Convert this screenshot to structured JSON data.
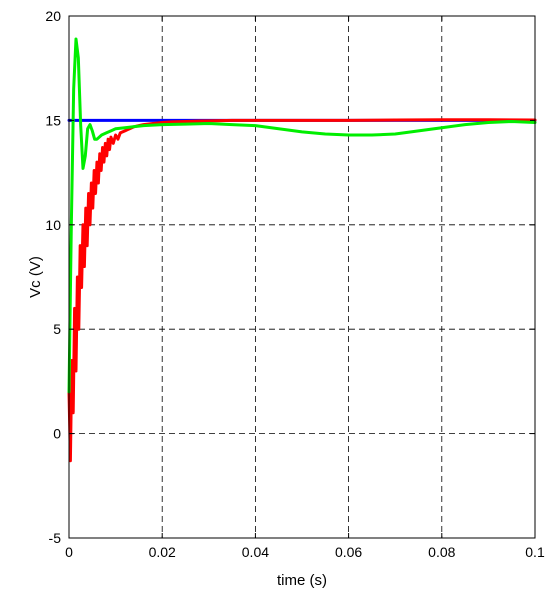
{
  "chart_data": {
    "type": "line",
    "title": "",
    "xlabel": "time (s)",
    "ylabel": "Vc (V)",
    "xlim": [
      0,
      0.1
    ],
    "ylim": [
      -5,
      20
    ],
    "xticks": [
      0,
      0.02,
      0.04,
      0.06,
      0.08,
      0.1
    ],
    "xtick_labels": [
      "0",
      "0.02",
      "0.04",
      "0.06",
      "0.08",
      "0.1"
    ],
    "yticks": [
      -5,
      0,
      5,
      10,
      15,
      20
    ],
    "ytick_labels": [
      "-5",
      "0",
      "5",
      "10",
      "15",
      "20"
    ],
    "grid": true,
    "legend": "none",
    "series": [
      {
        "color": "#0000ff",
        "x": [
          0,
          0.1
        ],
        "y": [
          15,
          15
        ]
      },
      {
        "color": "#ff0000",
        "x": [
          0,
          0.0003,
          0.0006,
          0.0009,
          0.0012,
          0.0015,
          0.0018,
          0.0021,
          0.0024,
          0.0027,
          0.003,
          0.0033,
          0.0036,
          0.0039,
          0.0042,
          0.0045,
          0.0048,
          0.0051,
          0.0054,
          0.0057,
          0.006,
          0.0063,
          0.0066,
          0.0069,
          0.0072,
          0.0075,
          0.0078,
          0.0081,
          0.0084,
          0.0087,
          0.009,
          0.0095,
          0.01,
          0.0105,
          0.011,
          0.012,
          0.013,
          0.014,
          0.015,
          0.016,
          0.018,
          0.02,
          0.022,
          0.025,
          0.028,
          0.03,
          0.035,
          0.04,
          0.05,
          0.06,
          0.07,
          0.08,
          0.09,
          0.1
        ],
        "y": [
          2.0,
          -1.3,
          3.5,
          1.0,
          6.0,
          3.0,
          7.5,
          5.0,
          9.0,
          7.0,
          10.0,
          8.0,
          10.8,
          9.0,
          11.5,
          10.0,
          12.0,
          10.8,
          12.6,
          11.5,
          13.0,
          12.0,
          13.4,
          12.6,
          13.7,
          13.0,
          13.9,
          13.3,
          14.1,
          13.6,
          14.2,
          13.9,
          14.3,
          14.1,
          14.4,
          14.5,
          14.6,
          14.7,
          14.75,
          14.8,
          14.85,
          14.9,
          14.93,
          14.95,
          14.97,
          14.98,
          15.0,
          15.0,
          15.0,
          15.0,
          15.02,
          15.03,
          15.03,
          15.02
        ]
      },
      {
        "color": "#00ee00",
        "x": [
          0,
          0.0005,
          0.001,
          0.0015,
          0.002,
          0.0025,
          0.003,
          0.0035,
          0.004,
          0.0045,
          0.005,
          0.0055,
          0.006,
          0.007,
          0.008,
          0.009,
          0.01,
          0.012,
          0.014,
          0.016,
          0.02,
          0.025,
          0.03,
          0.035,
          0.04,
          0.045,
          0.05,
          0.055,
          0.06,
          0.065,
          0.07,
          0.075,
          0.08,
          0.085,
          0.09,
          0.095,
          0.1
        ],
        "y": [
          2.0,
          10.0,
          16.5,
          18.9,
          18.0,
          14.8,
          12.7,
          13.3,
          14.6,
          14.8,
          14.5,
          14.1,
          14.1,
          14.3,
          14.4,
          14.5,
          14.6,
          14.65,
          14.7,
          14.75,
          14.8,
          14.82,
          14.85,
          14.8,
          14.75,
          14.6,
          14.45,
          14.35,
          14.3,
          14.3,
          14.35,
          14.5,
          14.65,
          14.8,
          14.9,
          14.95,
          14.9
        ]
      }
    ]
  }
}
